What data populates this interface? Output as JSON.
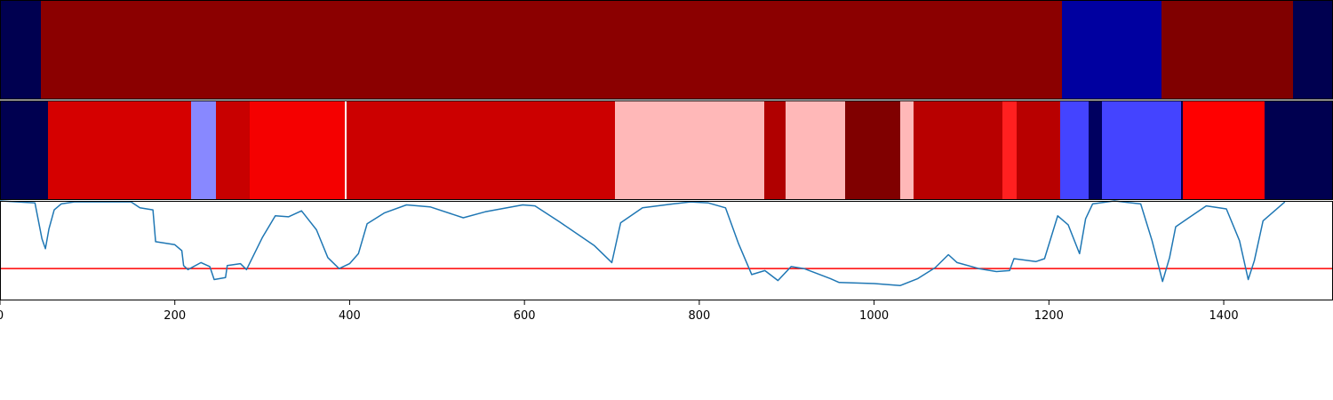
{
  "chart_data": [
    {
      "type": "heatmap",
      "panel": "top-segments",
      "x_range": [
        0,
        1500
      ],
      "segments": [
        {
          "x0": 0,
          "x1": 46,
          "color": "#000050"
        },
        {
          "x0": 46,
          "x1": 1195,
          "color": "#8b0000"
        },
        {
          "x0": 1195,
          "x1": 1307,
          "color": "#0000a0"
        },
        {
          "x0": 1307,
          "x1": 1455,
          "color": "#800000"
        },
        {
          "x0": 1455,
          "x1": 1500,
          "color": "#000050"
        }
      ]
    },
    {
      "type": "heatmap",
      "panel": "middle-segments",
      "x_range": [
        0,
        1500
      ],
      "segments": [
        {
          "x0": 0,
          "x1": 54,
          "color": "#000050"
        },
        {
          "x0": 54,
          "x1": 215,
          "color": "#d50000"
        },
        {
          "x0": 215,
          "x1": 243,
          "color": "#8888ff"
        },
        {
          "x0": 243,
          "x1": 281,
          "color": "#c80000"
        },
        {
          "x0": 281,
          "x1": 388,
          "color": "#f50000"
        },
        {
          "x0": 388,
          "x1": 390,
          "color": "#ffffff"
        },
        {
          "x0": 390,
          "x1": 692,
          "color": "#cc0000"
        },
        {
          "x0": 692,
          "x1": 860,
          "color": "#ffb8b8"
        },
        {
          "x0": 860,
          "x1": 884,
          "color": "#b00000"
        },
        {
          "x0": 884,
          "x1": 951,
          "color": "#ffb8b8"
        },
        {
          "x0": 951,
          "x1": 1013,
          "color": "#800000"
        },
        {
          "x0": 1013,
          "x1": 1028,
          "color": "#ffb8b8"
        },
        {
          "x0": 1028,
          "x1": 1128,
          "color": "#b80000"
        },
        {
          "x0": 1128,
          "x1": 1144,
          "color": "#ff2020"
        },
        {
          "x0": 1144,
          "x1": 1193,
          "color": "#b80000"
        },
        {
          "x0": 1193,
          "x1": 1225,
          "color": "#4444ff"
        },
        {
          "x0": 1225,
          "x1": 1240,
          "color": "#000060"
        },
        {
          "x0": 1240,
          "x1": 1329,
          "color": "#4444ff"
        },
        {
          "x0": 1329,
          "x1": 1331,
          "color": "#000050"
        },
        {
          "x0": 1331,
          "x1": 1423,
          "color": "#ff0000"
        },
        {
          "x0": 1423,
          "x1": 1500,
          "color": "#000050"
        }
      ]
    },
    {
      "type": "line",
      "panel": "signal",
      "xlim": [
        0,
        1525
      ],
      "ylim": [
        0,
        1
      ],
      "line_color": "#1f77b4",
      "threshold": {
        "y": 0.32,
        "color": "#ff0000"
      },
      "x_ticks": [
        "0",
        "200",
        "400",
        "600",
        "800",
        "1000",
        "1200",
        "1400"
      ],
      "x_tick_values": [
        0,
        200,
        400,
        600,
        800,
        1000,
        1200,
        1400
      ],
      "points": [
        [
          0,
          1.0
        ],
        [
          40,
          0.98
        ],
        [
          48,
          0.62
        ],
        [
          52,
          0.52
        ],
        [
          56,
          0.72
        ],
        [
          62,
          0.91
        ],
        [
          70,
          0.97
        ],
        [
          85,
          0.99
        ],
        [
          150,
          0.99
        ],
        [
          160,
          0.93
        ],
        [
          175,
          0.91
        ],
        [
          178,
          0.59
        ],
        [
          200,
          0.56
        ],
        [
          208,
          0.5
        ],
        [
          210,
          0.35
        ],
        [
          215,
          0.31
        ],
        [
          230,
          0.38
        ],
        [
          240,
          0.34
        ],
        [
          245,
          0.21
        ],
        [
          258,
          0.23
        ],
        [
          260,
          0.35
        ],
        [
          275,
          0.37
        ],
        [
          282,
          0.31
        ],
        [
          300,
          0.63
        ],
        [
          315,
          0.85
        ],
        [
          330,
          0.84
        ],
        [
          345,
          0.9
        ],
        [
          362,
          0.71
        ],
        [
          375,
          0.43
        ],
        [
          388,
          0.32
        ],
        [
          400,
          0.37
        ],
        [
          410,
          0.47
        ],
        [
          420,
          0.77
        ],
        [
          440,
          0.88
        ],
        [
          465,
          0.96
        ],
        [
          492,
          0.94
        ],
        [
          530,
          0.83
        ],
        [
          555,
          0.89
        ],
        [
          598,
          0.96
        ],
        [
          612,
          0.95
        ],
        [
          640,
          0.79
        ],
        [
          680,
          0.55
        ],
        [
          700,
          0.38
        ],
        [
          710,
          0.78
        ],
        [
          735,
          0.93
        ],
        [
          770,
          0.97
        ],
        [
          790,
          0.99
        ],
        [
          810,
          0.98
        ],
        [
          830,
          0.93
        ],
        [
          845,
          0.57
        ],
        [
          860,
          0.26
        ],
        [
          875,
          0.3
        ],
        [
          890,
          0.2
        ],
        [
          905,
          0.34
        ],
        [
          920,
          0.32
        ],
        [
          950,
          0.22
        ],
        [
          960,
          0.18
        ],
        [
          1000,
          0.17
        ],
        [
          1030,
          0.15
        ],
        [
          1050,
          0.22
        ],
        [
          1070,
          0.33
        ],
        [
          1085,
          0.46
        ],
        [
          1095,
          0.38
        ],
        [
          1120,
          0.32
        ],
        [
          1140,
          0.29
        ],
        [
          1155,
          0.3
        ],
        [
          1160,
          0.42
        ],
        [
          1185,
          0.39
        ],
        [
          1195,
          0.42
        ],
        [
          1210,
          0.85
        ],
        [
          1222,
          0.76
        ],
        [
          1235,
          0.47
        ],
        [
          1242,
          0.82
        ],
        [
          1250,
          0.97
        ],
        [
          1275,
          1.0
        ],
        [
          1305,
          0.97
        ],
        [
          1318,
          0.6
        ],
        [
          1330,
          0.19
        ],
        [
          1338,
          0.43
        ],
        [
          1345,
          0.74
        ],
        [
          1360,
          0.83
        ],
        [
          1380,
          0.95
        ],
        [
          1403,
          0.92
        ],
        [
          1418,
          0.6
        ],
        [
          1428,
          0.21
        ],
        [
          1435,
          0.4
        ],
        [
          1445,
          0.8
        ],
        [
          1470,
          0.99
        ]
      ]
    }
  ]
}
